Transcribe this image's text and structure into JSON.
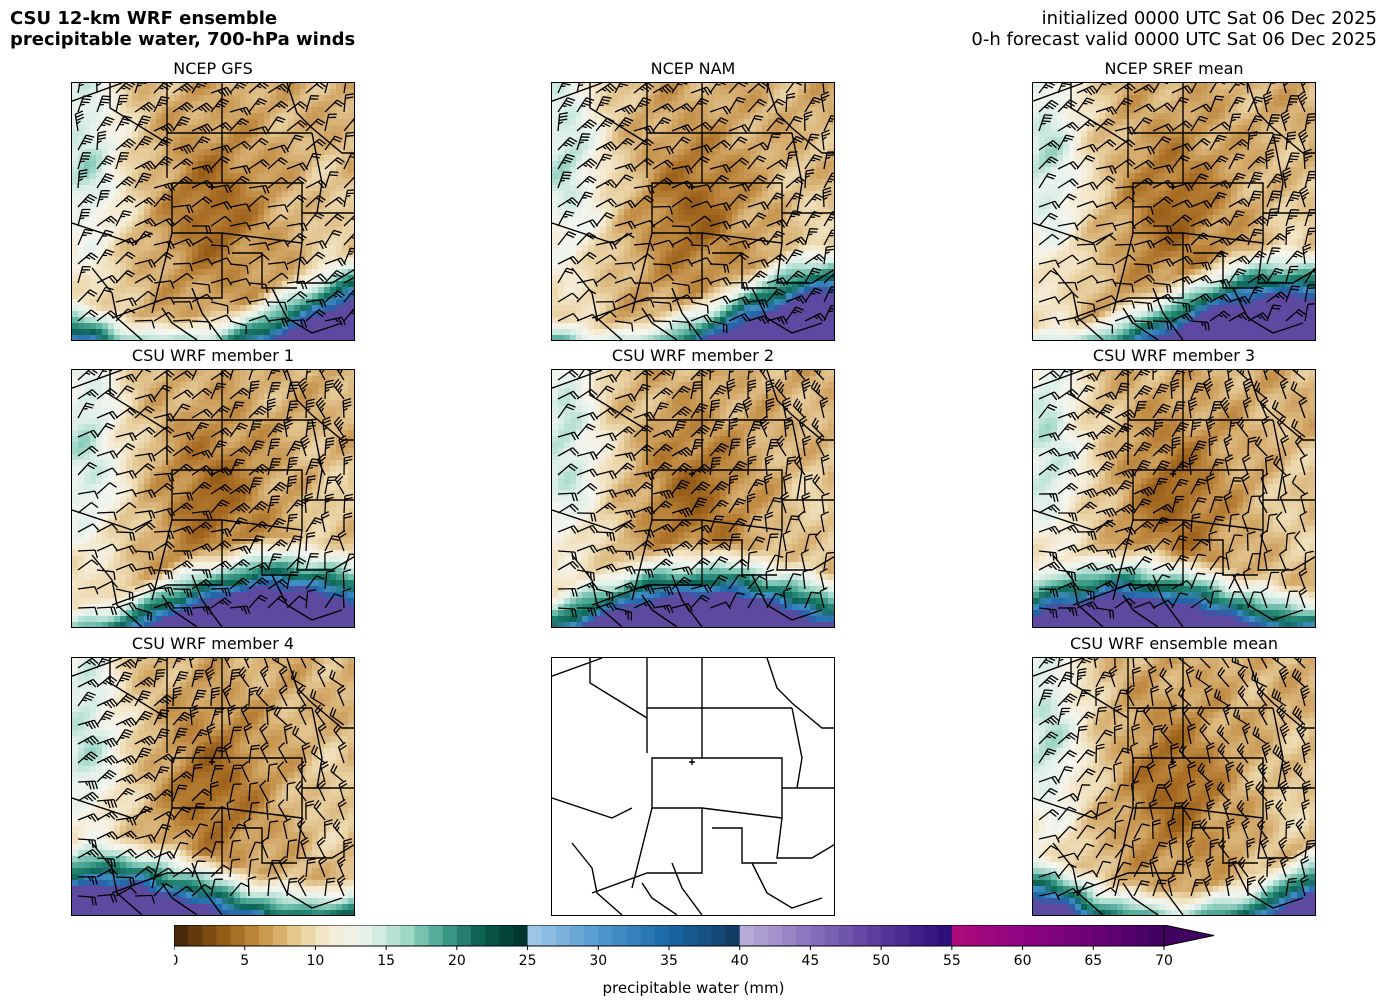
{
  "header": {
    "title_line1": "CSU 12-km WRF ensemble",
    "title_line2": "precipitable water, 700-hPa winds",
    "init_line": "initialized 0000 UTC Sat 06 Dec 2025",
    "valid_line": "0-h forecast valid 0000 UTC Sat 06 Dec 2025"
  },
  "panels": [
    {
      "title": "NCEP GFS",
      "filled": true
    },
    {
      "title": "NCEP NAM",
      "filled": true
    },
    {
      "title": "NCEP SREF mean",
      "filled": true
    },
    {
      "title": "CSU WRF member 1",
      "filled": true
    },
    {
      "title": "CSU WRF member 2",
      "filled": true
    },
    {
      "title": "CSU WRF member 3",
      "filled": true
    },
    {
      "title": "CSU WRF member 4",
      "filled": true
    },
    {
      "title": "",
      "filled": false
    },
    {
      "title": "CSU WRF ensemble mean",
      "filled": true
    }
  ],
  "chart_data": {
    "type": "heatmap",
    "variable": "precipitable water",
    "colorbar": {
      "label": "precipitable water (mm)",
      "min": 0,
      "max": 70,
      "extend": "max",
      "tick_values": [
        0,
        5,
        10,
        15,
        20,
        25,
        30,
        35,
        40,
        45,
        50,
        55,
        60,
        65,
        70
      ],
      "tick_labels": [
        "0",
        "5",
        "10",
        "15",
        "20",
        "25",
        "30",
        "35",
        "40",
        "45",
        "50",
        "55",
        "60",
        "65",
        "70"
      ],
      "segments": [
        {
          "from": 0,
          "to": 25,
          "colors": [
            "#4a2a08",
            "#8c5512",
            "#c08a3a",
            "#e6c98a",
            "#f6eed9",
            "#e6f3ee",
            "#9ed7c6",
            "#3e9f8c",
            "#0b5a4e",
            "#00382f"
          ]
        },
        {
          "from": 25,
          "to": 40,
          "colors": [
            "#9dc6e6",
            "#4f98cd",
            "#1a6aa8",
            "#123e66"
          ]
        },
        {
          "from": 40,
          "to": 55,
          "colors": [
            "#b8abd8",
            "#8670bb",
            "#5a3a9d",
            "#2e0f7a"
          ]
        },
        {
          "from": 55,
          "to": 70,
          "colors": [
            "#ad0b7c",
            "#8e0382",
            "#6d0278",
            "#420260"
          ]
        }
      ]
    }
  }
}
